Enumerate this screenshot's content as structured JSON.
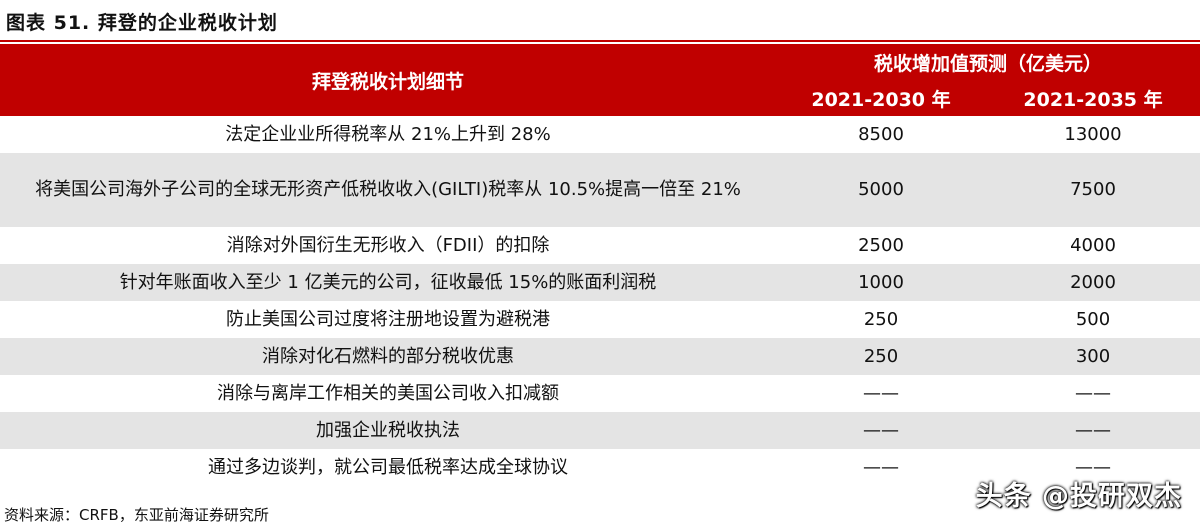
{
  "title": "图表 51. 拜登的企业税收计划",
  "table": {
    "header_main": "拜登税收计划细节",
    "header_group": "税收增加值预测（亿美元）",
    "header_col1": "2021-2030 年",
    "header_col2": "2021-2035 年",
    "rows": [
      {
        "desc": "法定企业业所得税率从 21%上升到 28%",
        "v1": "8500",
        "v2": "13000"
      },
      {
        "desc": "将美国公司海外子公司的全球无形资产低税收收入(GILTI)税率从 10.5%提高一倍至 21%",
        "v1": "5000",
        "v2": "7500"
      },
      {
        "desc": "消除对外国衍生无形收入（FDII）的扣除",
        "v1": "2500",
        "v2": "4000"
      },
      {
        "desc": "针对年账面收入至少 1 亿美元的公司，征收最低 15%的账面利润税",
        "v1": "1000",
        "v2": "2000"
      },
      {
        "desc": "防止美国公司过度将注册地设置为避税港",
        "v1": "250",
        "v2": "500"
      },
      {
        "desc": "消除对化石燃料的部分税收优惠",
        "v1": "250",
        "v2": "300"
      },
      {
        "desc": "消除与离岸工作相关的美国公司收入扣减额",
        "v1": "——",
        "v2": "——"
      },
      {
        "desc": "加强企业税收执法",
        "v1": "——",
        "v2": "——"
      },
      {
        "desc": "通过多边谈判，就公司最低税率达成全球协议",
        "v1": "——",
        "v2": "——"
      }
    ]
  },
  "source": "资料来源：CRFB，东亚前海证券研究所",
  "watermark": "头条 @投研双杰",
  "colors": {
    "header_bg": "#c00000",
    "stripe": "#e4e4e4"
  }
}
